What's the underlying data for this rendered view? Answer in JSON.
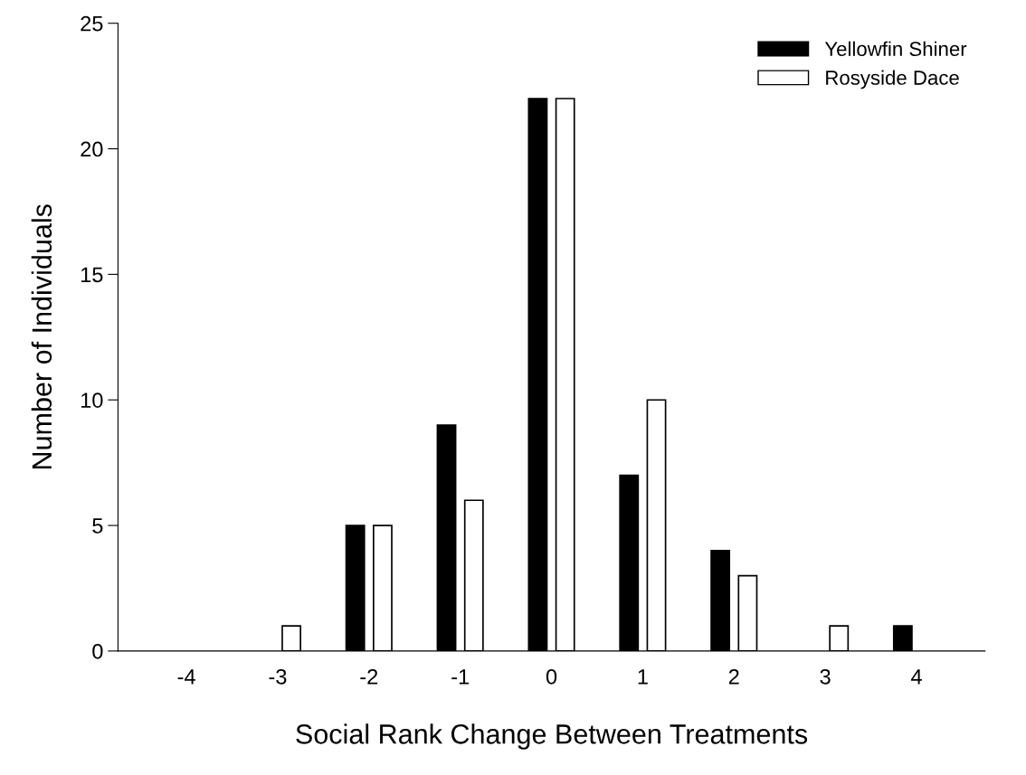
{
  "chart_data": {
    "type": "bar",
    "xlabel": "Social Rank Change Between Treatments",
    "ylabel": "Number of Individuals",
    "categories": [
      "-4",
      "-3",
      "-2",
      "-1",
      "0",
      "1",
      "2",
      "3",
      "4"
    ],
    "series": [
      {
        "name": "Yellowfin Shiner",
        "color": "#000000",
        "values": [
          0,
          0,
          5,
          9,
          22,
          7,
          4,
          0,
          1
        ]
      },
      {
        "name": "Rosyside Dace",
        "color": "#ffffff",
        "values": [
          0,
          1,
          5,
          6,
          22,
          10,
          3,
          1,
          0
        ]
      }
    ],
    "ylim": [
      0,
      25
    ],
    "yticks": [
      0,
      5,
      10,
      15,
      20,
      25
    ],
    "grid": false,
    "legend": "top right"
  }
}
